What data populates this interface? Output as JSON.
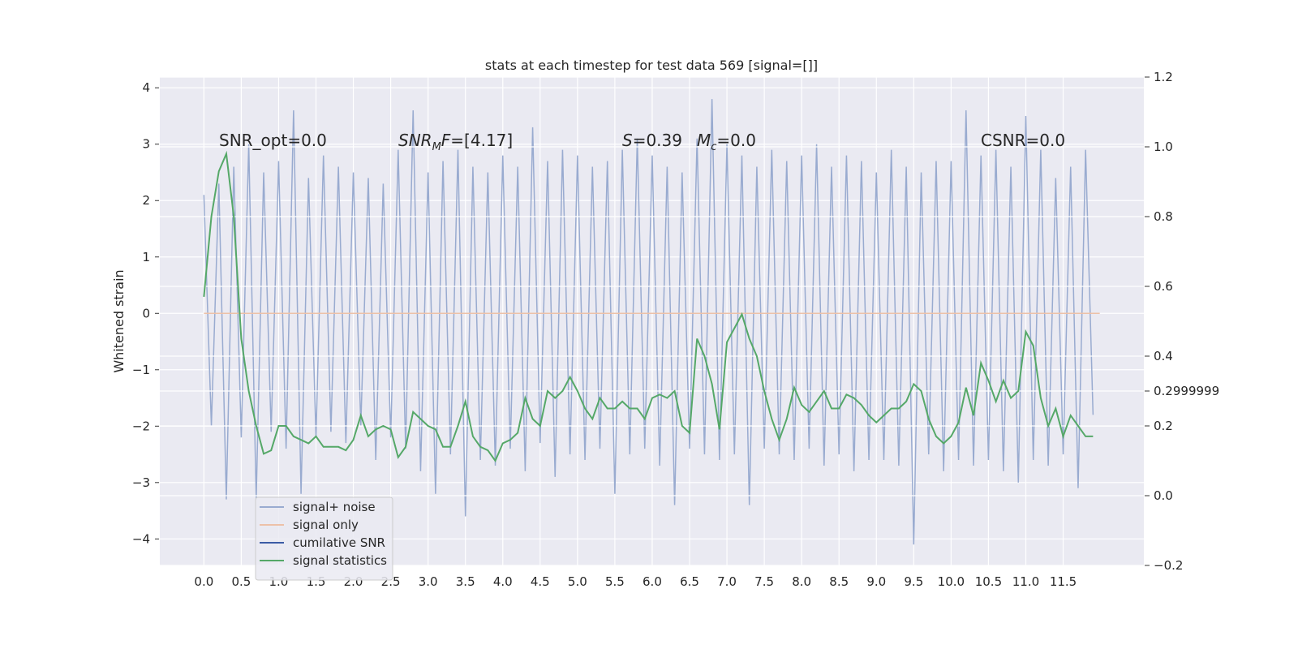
{
  "chart_data": {
    "type": "line",
    "title": "stats at each timestep for test data 569 [signal=[]]",
    "ylabel": "Whitened strain",
    "xlim": [
      -0.59,
      12.58
    ],
    "ylim": [
      -4.47,
      4.19
    ],
    "y2lim": [
      -0.2,
      1.2
    ],
    "xticks": [
      {
        "value": 0,
        "label": "0.0"
      },
      {
        "value": 0.5,
        "label": "0.5"
      },
      {
        "value": 1,
        "label": "1.0"
      },
      {
        "value": 1.5,
        "label": "1.5"
      },
      {
        "value": 2,
        "label": "2.0"
      },
      {
        "value": 2.5,
        "label": "2.5"
      },
      {
        "value": 3,
        "label": "3.0"
      },
      {
        "value": 3.5,
        "label": "3.5"
      },
      {
        "value": 4,
        "label": "4.0"
      },
      {
        "value": 4.5,
        "label": "4.5"
      },
      {
        "value": 5,
        "label": "5.0"
      },
      {
        "value": 5.5,
        "label": "5.5"
      },
      {
        "value": 6,
        "label": "6.0"
      },
      {
        "value": 6.5,
        "label": "6.5"
      },
      {
        "value": 7,
        "label": "7.0"
      },
      {
        "value": 7.5,
        "label": "7.5"
      },
      {
        "value": 8,
        "label": "8.0"
      },
      {
        "value": 8.5,
        "label": "8.5"
      },
      {
        "value": 9,
        "label": "9.0"
      },
      {
        "value": 9.5,
        "label": "9.5"
      },
      {
        "value": 10,
        "label": "10.0"
      },
      {
        "value": 10.5,
        "label": "10.5"
      },
      {
        "value": 11,
        "label": "11.0"
      },
      {
        "value": 11.5,
        "label": "11.5"
      }
    ],
    "yticks": [
      {
        "value": -4,
        "label": "−4"
      },
      {
        "value": -3,
        "label": "−3"
      },
      {
        "value": -2,
        "label": "−2"
      },
      {
        "value": -1,
        "label": "−1"
      },
      0,
      1,
      2,
      3,
      4
    ],
    "y2ticks": [
      {
        "value": -0.2,
        "label": "−0.2"
      },
      {
        "value": 0,
        "label": "0.0"
      },
      0.2,
      0.4,
      0.6,
      0.8,
      {
        "value": 1,
        "label": "1.0"
      },
      0.2999999,
      {
        "value": 1.2,
        "label": "1.2"
      }
    ],
    "grid": true,
    "legend": "lower left",
    "series": [
      {
        "name": "signal+ noise",
        "color": "#99abd0",
        "x": [
          0,
          0.1,
          0.2,
          0.3,
          0.4,
          0.5,
          0.6,
          0.7,
          0.8,
          0.9,
          1,
          1.1,
          1.2,
          1.3,
          1.4,
          1.5,
          1.6,
          1.7,
          1.8,
          1.9,
          2,
          2.1,
          2.2,
          2.3,
          2.4,
          2.5,
          2.6,
          2.7,
          2.8,
          2.9,
          3,
          3.1,
          3.2,
          3.3,
          3.4,
          3.5,
          3.6,
          3.7,
          3.8,
          3.9,
          4,
          4.1,
          4.2,
          4.3,
          4.4,
          4.5,
          4.6,
          4.7,
          4.8,
          4.9,
          5,
          5.1,
          5.2,
          5.3,
          5.4,
          5.5,
          5.6,
          5.7,
          5.8,
          5.9,
          6,
          6.1,
          6.2,
          6.3,
          6.4,
          6.5,
          6.6,
          6.7,
          6.8,
          6.9,
          7,
          7.1,
          7.2,
          7.3,
          7.4,
          7.5,
          7.6,
          7.7,
          7.8,
          7.9,
          8,
          8.1,
          8.2,
          8.3,
          8.4,
          8.5,
          8.6,
          8.7,
          8.8,
          8.9,
          9,
          9.1,
          9.2,
          9.3,
          9.4,
          9.5,
          9.6,
          9.7,
          9.8,
          9.9,
          10,
          10.1,
          10.2,
          10.3,
          10.4,
          10.5,
          10.6,
          10.7,
          10.8,
          10.9,
          11,
          11.1,
          11.2,
          11.3,
          11.4,
          11.5,
          11.6,
          11.7,
          11.8,
          11.9
        ],
        "values": [
          2.1,
          -2.0,
          2.3,
          -3.3,
          2.6,
          -2.2,
          3.0,
          -3.3,
          2.5,
          -2.1,
          2.7,
          -2.4,
          3.6,
          -3.2,
          2.4,
          -2.2,
          2.8,
          -2.1,
          2.6,
          -2.3,
          2.5,
          -2.0,
          2.4,
          -2.6,
          2.3,
          -2.2,
          2.9,
          -2.4,
          3.6,
          -2.8,
          2.5,
          -3.2,
          2.7,
          -2.5,
          2.9,
          -3.6,
          2.6,
          -2.6,
          2.5,
          -2.7,
          2.8,
          -2.4,
          2.6,
          -2.8,
          3.3,
          -2.3,
          2.7,
          -2.9,
          2.9,
          -2.5,
          2.8,
          -2.6,
          2.6,
          -2.4,
          2.7,
          -3.2,
          2.9,
          -2.5,
          3.1,
          -2.4,
          2.8,
          -2.7,
          2.6,
          -3.4,
          2.5,
          -2.4,
          3.1,
          -2.5,
          3.8,
          -2.6,
          3.0,
          -2.5,
          2.8,
          -3.4,
          2.6,
          -2.4,
          2.9,
          -2.5,
          2.7,
          -2.6,
          2.8,
          -2.4,
          3.0,
          -2.7,
          2.6,
          -2.5,
          2.8,
          -2.8,
          2.7,
          -2.6,
          2.5,
          -2.6,
          2.9,
          -2.7,
          2.6,
          -4.1,
          2.5,
          -2.5,
          2.7,
          -2.8,
          2.7,
          -2.6,
          3.6,
          -2.7,
          2.8,
          -2.6,
          2.9,
          -2.8,
          2.6,
          -3.0,
          3.5,
          -2.6,
          2.9,
          -2.7,
          2.4,
          -2.5,
          2.6,
          -3.1,
          2.9,
          -1.8
        ]
      },
      {
        "name": "signal only",
        "color": "#edc1a8",
        "x": [
          0,
          11.99
        ],
        "values": [
          0,
          0
        ]
      },
      {
        "name": "cumilative SNR",
        "color": "#3b5ba5",
        "axis": "y2",
        "x": [],
        "values": []
      },
      {
        "name": "signal statistics",
        "color": "#55a868",
        "axis": "y2",
        "x": [
          0,
          0.1,
          0.2,
          0.3,
          0.4,
          0.5,
          0.6,
          0.7,
          0.8,
          0.9,
          1,
          1.1,
          1.2,
          1.3,
          1.4,
          1.5,
          1.6,
          1.7,
          1.8,
          1.9,
          2,
          2.1,
          2.2,
          2.3,
          2.4,
          2.5,
          2.6,
          2.7,
          2.8,
          2.9,
          3,
          3.1,
          3.2,
          3.3,
          3.4,
          3.5,
          3.6,
          3.7,
          3.8,
          3.9,
          4,
          4.1,
          4.2,
          4.3,
          4.4,
          4.5,
          4.6,
          4.7,
          4.8,
          4.9,
          5,
          5.1,
          5.2,
          5.3,
          5.4,
          5.5,
          5.6,
          5.7,
          5.8,
          5.9,
          6,
          6.1,
          6.2,
          6.3,
          6.4,
          6.5,
          6.6,
          6.7,
          6.8,
          6.9,
          7,
          7.1,
          7.2,
          7.3,
          7.4,
          7.5,
          7.6,
          7.7,
          7.8,
          7.9,
          8,
          8.1,
          8.2,
          8.3,
          8.4,
          8.5,
          8.6,
          8.7,
          8.8,
          8.9,
          9,
          9.1,
          9.2,
          9.3,
          9.4,
          9.5,
          9.6,
          9.7,
          9.8,
          9.9,
          10,
          10.1,
          10.2,
          10.3,
          10.4,
          10.5,
          10.6,
          10.7,
          10.8,
          10.9,
          11,
          11.1,
          11.2,
          11.3,
          11.4,
          11.5,
          11.6,
          11.7,
          11.8,
          11.9
        ],
        "values": [
          0.57,
          0.8,
          0.93,
          0.98,
          0.8,
          0.45,
          0.3,
          0.2,
          0.12,
          0.13,
          0.2,
          0.2,
          0.17,
          0.16,
          0.15,
          0.17,
          0.14,
          0.14,
          0.14,
          0.13,
          0.16,
          0.23,
          0.17,
          0.19,
          0.2,
          0.19,
          0.11,
          0.14,
          0.24,
          0.22,
          0.2,
          0.19,
          0.14,
          0.14,
          0.2,
          0.27,
          0.17,
          0.14,
          0.13,
          0.1,
          0.15,
          0.16,
          0.18,
          0.28,
          0.22,
          0.2,
          0.3,
          0.28,
          0.3,
          0.34,
          0.3,
          0.25,
          0.22,
          0.28,
          0.25,
          0.25,
          0.27,
          0.25,
          0.25,
          0.22,
          0.28,
          0.29,
          0.28,
          0.3,
          0.2,
          0.18,
          0.45,
          0.4,
          0.32,
          0.19,
          0.44,
          0.48,
          0.52,
          0.45,
          0.4,
          0.3,
          0.22,
          0.16,
          0.22,
          0.31,
          0.26,
          0.24,
          0.27,
          0.3,
          0.25,
          0.25,
          0.29,
          0.28,
          0.26,
          0.23,
          0.21,
          0.23,
          0.25,
          0.25,
          0.27,
          0.32,
          0.3,
          0.22,
          0.17,
          0.15,
          0.17,
          0.21,
          0.31,
          0.23,
          0.38,
          0.33,
          0.27,
          0.33,
          0.28,
          0.3,
          0.47,
          0.43,
          0.28,
          0.2,
          0.25,
          0.17,
          0.23,
          0.2,
          0.17,
          0.17
        ]
      }
    ],
    "annotations": [
      {
        "parts": [
          {
            "text": "SNR_opt=0.0"
          }
        ]
      },
      {
        "parts": [
          {
            "text": "SNR",
            "italic": true
          },
          {
            "text": "M",
            "italic": true,
            "sub": true
          },
          {
            "text": "F",
            "italic": true
          },
          {
            "text": "=[4.17]"
          }
        ]
      },
      {
        "parts": [
          {
            "text": "S",
            "italic": true
          },
          {
            "text": "=0.39"
          }
        ]
      },
      {
        "parts": [
          {
            "text": "M",
            "italic": true
          },
          {
            "text": "c",
            "italic": true,
            "sub": true
          },
          {
            "text": "=0.0"
          }
        ]
      },
      {
        "parts": [
          {
            "text": "CSNR=0.0"
          }
        ]
      }
    ]
  }
}
